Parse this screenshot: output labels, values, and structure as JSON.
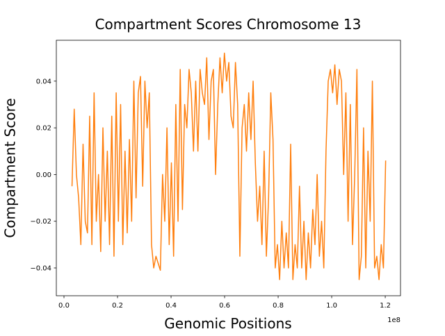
{
  "chart_data": {
    "type": "line",
    "title": "Compartment Scores Chromosome 13",
    "x_label": "Genomic Positions",
    "y_label": "Compartment Score",
    "x_offset_label": "1e8",
    "color": "#ff7f0e",
    "x": [
      3000000,
      3825000,
      4650000,
      5475000,
      6300000,
      7125000,
      7950000,
      8775000,
      9600000,
      10425000,
      11250000,
      12075000,
      12900000,
      13725000,
      14550000,
      15375000,
      16200000,
      17025000,
      17850000,
      18675000,
      19500000,
      20325000,
      21150000,
      21975000,
      22800000,
      23625000,
      24450000,
      25275000,
      26100000,
      26925000,
      27750000,
      28575000,
      29400000,
      30225000,
      31050000,
      31875000,
      32700000,
      33525000,
      34350000,
      35175000,
      36000000,
      36825000,
      37650000,
      38475000,
      39300000,
      40125000,
      40950000,
      41775000,
      42600000,
      43425000,
      44250000,
      45075000,
      45900000,
      46725000,
      47550000,
      48375000,
      49200000,
      50025000,
      50850000,
      51675000,
      52500000,
      53325000,
      54150000,
      54975000,
      55800000,
      56625000,
      57450000,
      58275000,
      59100000,
      59925000,
      60750000,
      61575000,
      62400000,
      63225000,
      64050000,
      64875000,
      65700000,
      66525000,
      67350000,
      68175000,
      69000000,
      69825000,
      70650000,
      71475000,
      72300000,
      73125000,
      73950000,
      74775000,
      75600000,
      76425000,
      77250000,
      78075000,
      78900000,
      79725000,
      80550000,
      81375000,
      82200000,
      83025000,
      83850000,
      84675000,
      85500000,
      86325000,
      87150000,
      87975000,
      88800000,
      89625000,
      90450000,
      91275000,
      92100000,
      92925000,
      93750000,
      94575000,
      95400000,
      96225000,
      97050000,
      97875000,
      98700000,
      99525000,
      100350000,
      101175000,
      102000000,
      102825000,
      103650000,
      104475000,
      105300000,
      106125000,
      106950000,
      107775000,
      108600000,
      109425000,
      110250000,
      111075000,
      111900000,
      112725000,
      113550000,
      114375000,
      115200000,
      116025000,
      116850000,
      117675000,
      118500000,
      119325000,
      120150000
    ],
    "values": [
      -0.005,
      0.028,
      0.0,
      -0.01,
      -0.03,
      0.013,
      -0.02,
      -0.025,
      0.025,
      -0.03,
      0.035,
      -0.02,
      0.0,
      -0.033,
      0.02,
      -0.02,
      0.01,
      -0.03,
      0.025,
      -0.035,
      0.035,
      -0.02,
      0.03,
      -0.03,
      0.01,
      -0.025,
      0.015,
      -0.02,
      0.04,
      -0.01,
      0.035,
      0.042,
      -0.005,
      0.04,
      0.02,
      0.035,
      -0.03,
      -0.04,
      -0.035,
      -0.038,
      -0.041,
      0.0,
      -0.02,
      0.02,
      -0.03,
      0.005,
      -0.035,
      0.03,
      -0.02,
      0.045,
      -0.015,
      0.03,
      0.02,
      0.045,
      0.035,
      0.01,
      0.04,
      0.01,
      0.045,
      0.035,
      0.03,
      0.05,
      0.015,
      0.04,
      0.045,
      0.0,
      0.03,
      0.05,
      0.035,
      0.052,
      0.04,
      0.048,
      0.025,
      0.02,
      0.048,
      0.03,
      -0.035,
      0.02,
      0.03,
      0.01,
      0.035,
      0.015,
      0.04,
      0.005,
      -0.02,
      -0.005,
      -0.03,
      0.01,
      -0.035,
      -0.01,
      0.035,
      0.015,
      -0.04,
      -0.03,
      -0.045,
      -0.02,
      -0.04,
      -0.025,
      -0.04,
      0.013,
      -0.045,
      -0.03,
      -0.04,
      -0.005,
      -0.04,
      -0.02,
      -0.045,
      -0.025,
      -0.04,
      -0.015,
      -0.03,
      0.0,
      -0.035,
      -0.02,
      -0.04,
      0.01,
      0.04,
      0.045,
      0.035,
      0.047,
      0.03,
      0.045,
      0.04,
      0.0,
      0.035,
      -0.02,
      0.03,
      -0.03,
      0.0,
      0.045,
      -0.045,
      -0.035,
      0.02,
      -0.04,
      0.01,
      -0.02,
      0.04,
      -0.04,
      -0.035,
      -0.045,
      -0.03,
      -0.04,
      0.006
    ],
    "xlim": [
      -2860000,
      125700000
    ],
    "xticks": [
      {
        "value": 0,
        "label": "0.0"
      },
      {
        "value": 20000000,
        "label": "0.2"
      },
      {
        "value": 40000000,
        "label": "0.4"
      },
      {
        "value": 60000000,
        "label": "0.6"
      },
      {
        "value": 80000000,
        "label": "0.8"
      },
      {
        "value": 100000000,
        "label": "1.0"
      },
      {
        "value": 120000000,
        "label": "1.2"
      }
    ],
    "ylim": [
      -0.0519,
      0.0575
    ],
    "yticks": [
      {
        "value": -0.04,
        "label": "−0.04"
      },
      {
        "value": -0.02,
        "label": "−0.02"
      },
      {
        "value": 0,
        "label": "0.00"
      },
      0.02,
      0.04
    ]
  }
}
